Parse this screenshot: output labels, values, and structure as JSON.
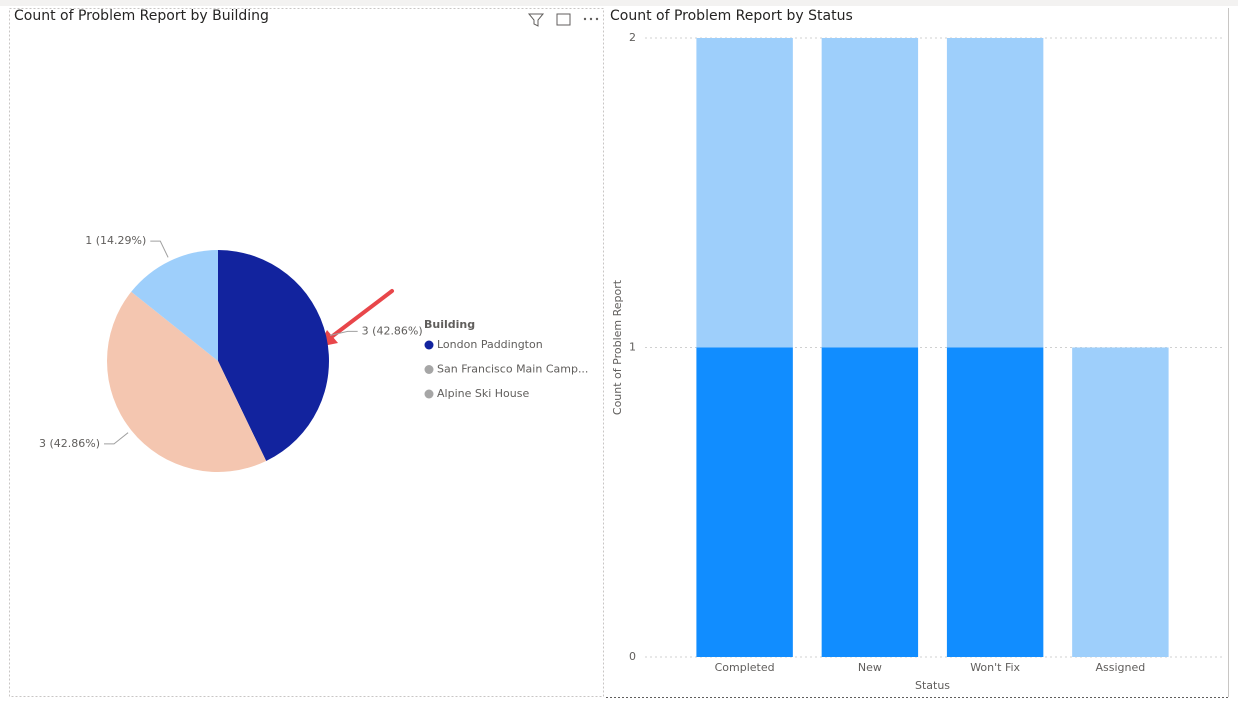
{
  "chart_data": [
    {
      "type": "pie",
      "title": "Count of Problem Report by Building",
      "categories": [
        "London Paddington",
        "San Francisco Main Camp...",
        "Alpine Ski House"
      ],
      "values": [
        3,
        3,
        1
      ],
      "value_labels": [
        "3 (42.86%)",
        "3 (42.86%)",
        "1 (14.29%)"
      ],
      "colors": [
        "#12239E",
        "#F4C6B0",
        "#9ECFFB"
      ],
      "legend_title": "Building",
      "legend_marker_colors": [
        "#12239E",
        "#A6A6A6",
        "#A6A6A6"
      ]
    },
    {
      "type": "bar",
      "title": "Count of Problem Report by Status",
      "categories": [
        "Completed",
        "New",
        "Won't Fix",
        "Assigned"
      ],
      "series": [
        {
          "color": "#118DFF",
          "values": [
            1,
            1,
            1,
            0
          ]
        },
        {
          "color": "#9ECFFB",
          "values": [
            1,
            1,
            1,
            1
          ]
        }
      ],
      "stacked": true,
      "xlabel": "Status",
      "ylabel": "Count of Problem Report",
      "ylim": [
        0,
        2
      ],
      "yticks": [
        0,
        1,
        2
      ],
      "grid": true
    }
  ]
}
